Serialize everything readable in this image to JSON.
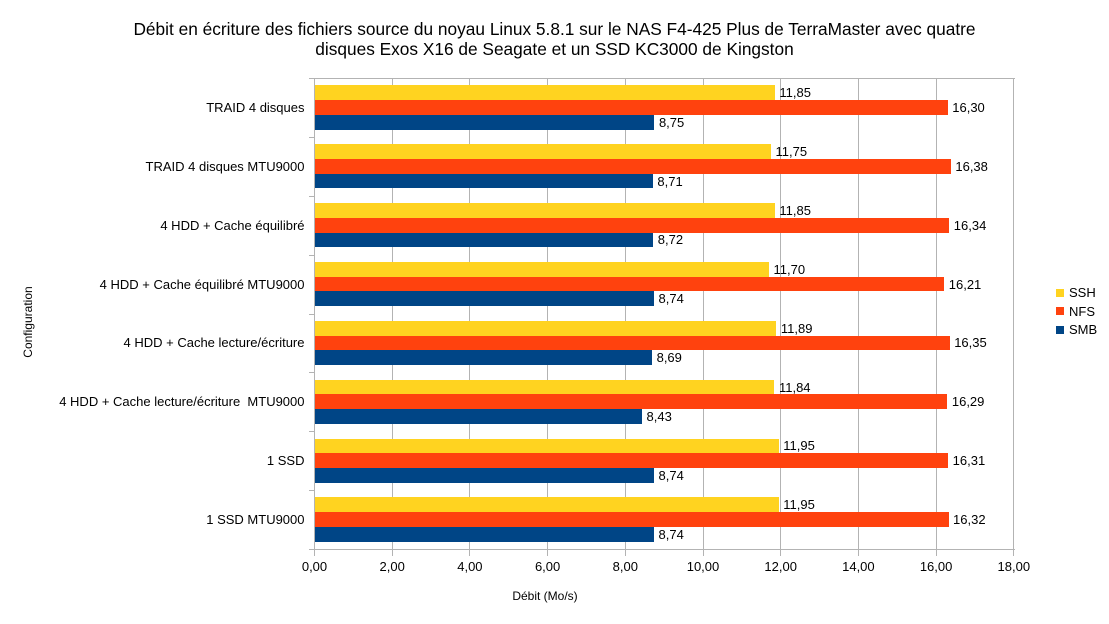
{
  "chart_data": {
    "type": "bar",
    "orientation": "horizontal",
    "title_lines": [
      "Débit en écriture des fichiers source du noyau Linux 5.8.1 sur le NAS F4-425 Plus de TerraMaster avec quatre",
      "disques Exos X16 de Seagate et un SSD KC3000 de Kingston"
    ],
    "xlabel": "Débit (Mo/s)",
    "ylabel": "Configuration",
    "xlim": [
      0,
      18
    ],
    "x_ticks": [
      "0,00",
      "2,00",
      "4,00",
      "6,00",
      "8,00",
      "10,00",
      "12,00",
      "14,00",
      "16,00",
      "18,00"
    ],
    "grid": true,
    "legend_position": "right",
    "categories": [
      "TRAID 4 disques",
      "TRAID 4 disques MTU9000",
      "4 HDD + Cache équilibré",
      "4 HDD + Cache équilibré MTU9000",
      "4 HDD + Cache lecture/écriture",
      "4 HDD + Cache lecture/écriture  MTU9000",
      "1 SSD",
      "1 SSD MTU9000"
    ],
    "series": [
      {
        "name": "SSH",
        "color": "#FFD320",
        "values": [
          11.85,
          11.75,
          11.85,
          11.7,
          11.89,
          11.84,
          11.95,
          11.95
        ],
        "labels": [
          "11,85",
          "11,75",
          "11,85",
          "11,70",
          "11,89",
          "11,84",
          "11,95",
          "11,95"
        ]
      },
      {
        "name": "NFS",
        "color": "#FF420E",
        "values": [
          16.3,
          16.38,
          16.34,
          16.21,
          16.35,
          16.29,
          16.31,
          16.32
        ],
        "labels": [
          "16,30",
          "16,38",
          "16,34",
          "16,21",
          "16,35",
          "16,29",
          "16,31",
          "16,32"
        ]
      },
      {
        "name": "SMB",
        "color": "#004586",
        "values": [
          8.75,
          8.71,
          8.72,
          8.74,
          8.69,
          8.43,
          8.74,
          8.74
        ],
        "labels": [
          "8,75",
          "8,71",
          "8,72",
          "8,74",
          "8,69",
          "8,43",
          "8,74",
          "8,74"
        ]
      }
    ],
    "colors": {
      "grid": "#b3b3b3",
      "axis": "#b3b3b3",
      "text": "#000000",
      "background": "#ffffff"
    }
  }
}
